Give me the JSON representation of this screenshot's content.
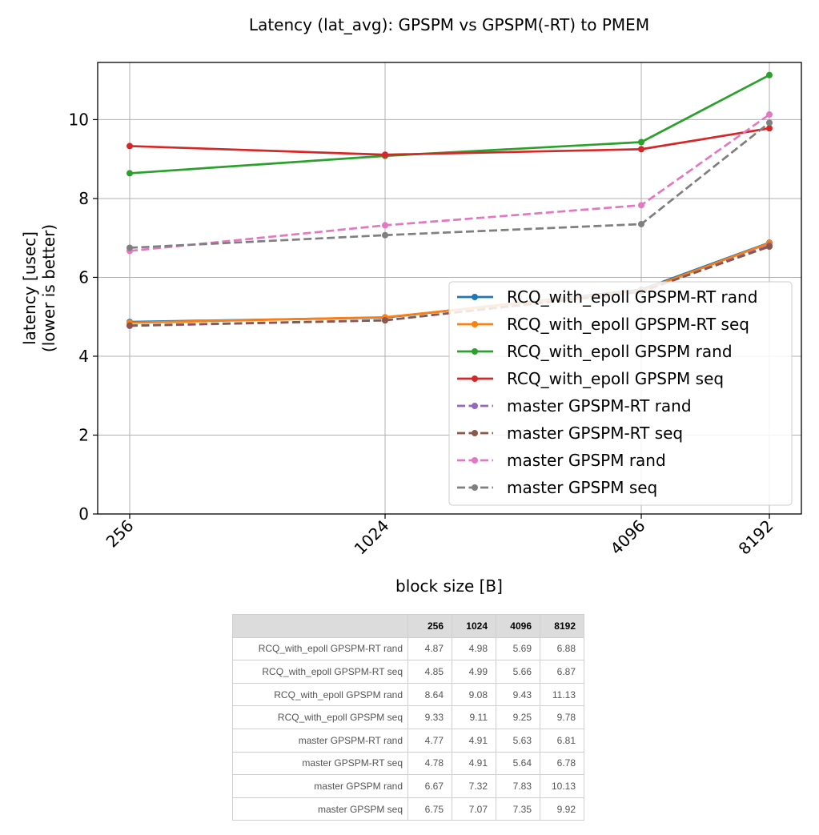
{
  "chart_data": {
    "type": "line",
    "title": "Latency (lat_avg): GPSPM vs GPSPM(-RT) to PMEM",
    "xlabel": "block size [B]",
    "ylabel": [
      "latency [usec]",
      "(lower is better)"
    ],
    "x": [
      "256",
      "1024",
      "4096",
      "8192"
    ],
    "ylim": [
      0,
      11.45
    ],
    "yticks": [
      "0",
      "2",
      "4",
      "6",
      "8",
      "10"
    ],
    "grid": true,
    "legend_position": "lower-right",
    "series": [
      {
        "name": "RCQ_with_epoll GPSPM-RT rand",
        "color": "#1f77b4",
        "dashed": false,
        "values": [
          4.87,
          4.98,
          5.69,
          6.88
        ]
      },
      {
        "name": "RCQ_with_epoll GPSPM-RT seq",
        "color": "#ff7f0e",
        "dashed": false,
        "values": [
          4.85,
          4.99,
          5.66,
          6.87
        ]
      },
      {
        "name": "RCQ_with_epoll GPSPM rand",
        "color": "#2ca02c",
        "dashed": false,
        "values": [
          8.64,
          9.08,
          9.43,
          11.13
        ]
      },
      {
        "name": "RCQ_with_epoll GPSPM seq",
        "color": "#d62728",
        "dashed": false,
        "values": [
          9.33,
          9.11,
          9.25,
          9.78
        ]
      },
      {
        "name": "master GPSPM-RT rand",
        "color": "#9467bd",
        "dashed": true,
        "values": [
          4.77,
          4.91,
          5.63,
          6.81
        ]
      },
      {
        "name": "master GPSPM-RT seq",
        "color": "#8c564b",
        "dashed": true,
        "values": [
          4.78,
          4.91,
          5.64,
          6.78
        ]
      },
      {
        "name": "master GPSPM rand",
        "color": "#e377c2",
        "dashed": true,
        "values": [
          6.67,
          7.32,
          7.83,
          10.13
        ]
      },
      {
        "name": "master GPSPM seq",
        "color": "#7f7f7f",
        "dashed": true,
        "values": [
          6.75,
          7.07,
          7.35,
          9.92
        ]
      }
    ]
  },
  "table": {
    "headers": [
      "256",
      "1024",
      "4096",
      "8192"
    ],
    "rows": [
      {
        "label": "RCQ_with_epoll GPSPM-RT rand",
        "values": [
          "4.87",
          "4.98",
          "5.69",
          "6.88"
        ]
      },
      {
        "label": "RCQ_with_epoll GPSPM-RT seq",
        "values": [
          "4.85",
          "4.99",
          "5.66",
          "6.87"
        ]
      },
      {
        "label": "RCQ_with_epoll GPSPM rand",
        "values": [
          "8.64",
          "9.08",
          "9.43",
          "11.13"
        ]
      },
      {
        "label": "RCQ_with_epoll GPSPM seq",
        "values": [
          "9.33",
          "9.11",
          "9.25",
          "9.78"
        ]
      },
      {
        "label": "master GPSPM-RT rand",
        "values": [
          "4.77",
          "4.91",
          "5.63",
          "6.81"
        ]
      },
      {
        "label": "master GPSPM-RT seq",
        "values": [
          "4.78",
          "4.91",
          "5.64",
          "6.78"
        ]
      },
      {
        "label": "master GPSPM rand",
        "values": [
          "6.67",
          "7.32",
          "7.83",
          "10.13"
        ]
      },
      {
        "label": "master GPSPM seq",
        "values": [
          "6.75",
          "7.07",
          "7.35",
          "9.92"
        ]
      }
    ]
  }
}
